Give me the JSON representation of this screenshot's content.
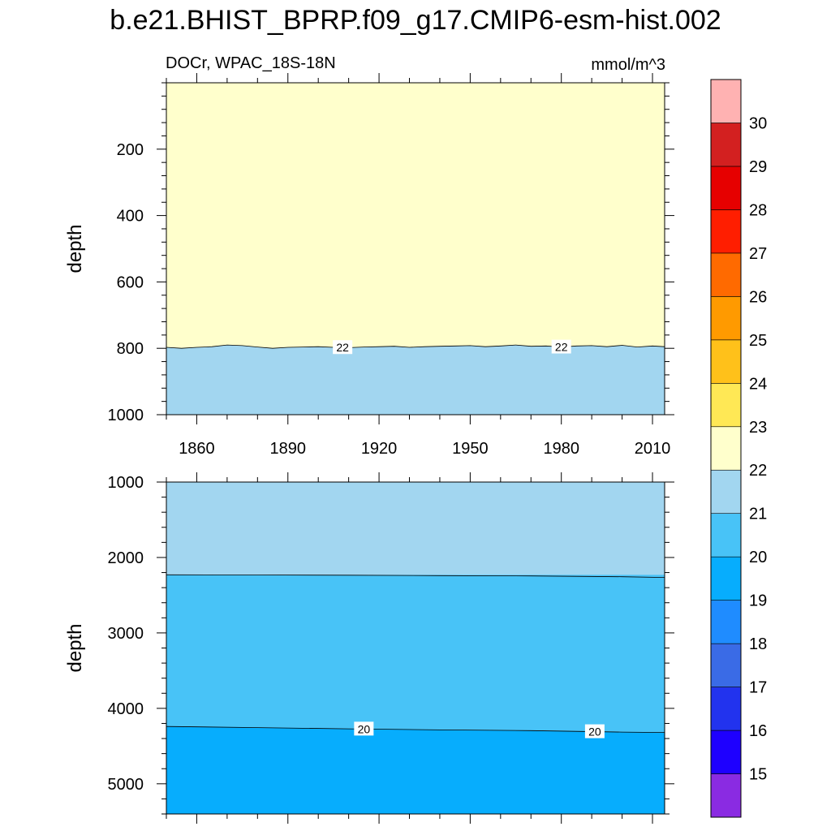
{
  "chart_data": {
    "title": "b.e21.BHIST_BPRP.f09_g17.CMIP6-esm-hist.002",
    "left_string": "DOCr, WPAC_18S-18N",
    "right_string": "mmol/m^3",
    "type": "filled-contour",
    "x_range": [
      1850,
      2014
    ],
    "x_ticks": [
      1860,
      1890,
      1920,
      1950,
      1980,
      2010
    ],
    "x_tick_labels": [
      "1860",
      "1890",
      "1920",
      "1950",
      "1980",
      "2010"
    ],
    "colorbar": {
      "levels": [
        15,
        16,
        17,
        18,
        19,
        20,
        21,
        22,
        23,
        24,
        25,
        26,
        27,
        28,
        29,
        30
      ],
      "labels": [
        "15",
        "16",
        "17",
        "18",
        "19",
        "20",
        "21",
        "22",
        "23",
        "24",
        "25",
        "26",
        "27",
        "28",
        "29",
        "30"
      ],
      "colors": [
        "#8a2be2",
        "#1e00ff",
        "#2233ee",
        "#3a6be6",
        "#1f8cff",
        "#07adfd",
        "#48c3f7",
        "#a2d6f0",
        "#ffffcc",
        "#ffe855",
        "#ffc11a",
        "#ff9a00",
        "#ff6a00",
        "#ff1e00",
        "#e60000",
        "#d32020",
        "#ffb2b2"
      ]
    },
    "panels": [
      {
        "name": "upper",
        "ylabel": "depth",
        "y_range": [
          0,
          1000
        ],
        "y_ticks": [
          200,
          400,
          600,
          800,
          1000
        ],
        "y_tick_labels": [
          "200",
          "400",
          "600",
          "800",
          "1000"
        ],
        "regions": [
          {
            "level_range": [
              21,
              22
            ],
            "color": "#a2d6f0",
            "depth_from": 1000
          },
          {
            "level_range": [
              22,
              23
            ],
            "color": "#ffffcc",
            "depth_from": 0
          }
        ],
        "contours": [
          {
            "level": 22,
            "label": "22",
            "label_years": [
              1908,
              1980
            ],
            "years": [
              1850,
              1855,
              1860,
              1865,
              1870,
              1875,
              1880,
              1885,
              1890,
              1895,
              1900,
              1905,
              1910,
              1915,
              1920,
              1925,
              1930,
              1935,
              1940,
              1945,
              1950,
              1955,
              1960,
              1965,
              1970,
              1975,
              1980,
              1985,
              1990,
              1995,
              2000,
              2005,
              2010,
              2014
            ],
            "depths": [
              797,
              800,
              797,
              795,
              790,
              792,
              796,
              800,
              797,
              796,
              795,
              797,
              798,
              796,
              795,
              794,
              797,
              795,
              794,
              793,
              792,
              795,
              793,
              790,
              794,
              793,
              796,
              793,
              792,
              795,
              791,
              796,
              793,
              795
            ]
          }
        ]
      },
      {
        "name": "lower",
        "ylabel": "depth",
        "y_range": [
          1000,
          5400
        ],
        "y_ticks": [
          1000,
          2000,
          3000,
          4000,
          5000
        ],
        "y_tick_labels": [
          "1000",
          "2000",
          "3000",
          "4000",
          "5000"
        ],
        "regions": [
          {
            "level_range": [
              21,
              22
            ],
            "color": "#a2d6f0",
            "depth_from": 1000
          },
          {
            "level_range": [
              20,
              21
            ],
            "color": "#48c3f7",
            "depth_from": 2230
          },
          {
            "level_range": [
              19,
              20
            ],
            "color": "#07adfd",
            "depth_from": 4240
          }
        ],
        "contours": [
          {
            "level": 21,
            "label": "",
            "label_years": [],
            "years": [
              1850,
              1880,
              1910,
              1940,
              1970,
              2000,
              2014
            ],
            "depths": [
              2230,
              2232,
              2235,
              2240,
              2245,
              2255,
              2265
            ]
          },
          {
            "level": 20,
            "label": "20",
            "label_years": [
              1915,
              1991
            ],
            "years": [
              1850,
              1880,
              1910,
              1940,
              1970,
              2000,
              2014
            ],
            "depths": [
              4240,
              4255,
              4272,
              4285,
              4295,
              4315,
              4320
            ]
          }
        ]
      }
    ]
  }
}
